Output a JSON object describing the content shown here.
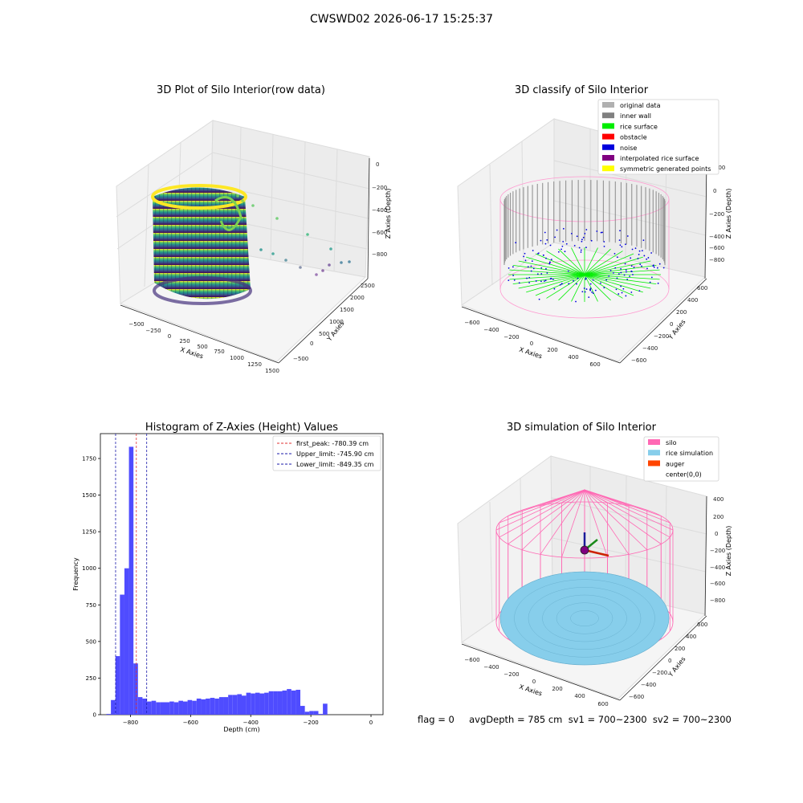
{
  "figure": {
    "title": "CWSWD02 2026-06-17 15:25:37",
    "footer": "flag = 0     avgDepth = 785 cm  sv1 = 700~2300  sv2 = 700~2300"
  },
  "colors": {
    "hist_bar": "#4f4cff",
    "first_peak_line": "#e03030",
    "limit_line": "#1a1aaa",
    "silo": "#ff69b4",
    "rice_simulation": "#87ceeb",
    "auger": "#ff4500",
    "original_data": "#b0b0b0",
    "inner_wall": "#808080",
    "rice_surface": "#00ee00",
    "obstacle": "#ff0000",
    "noise": "#0000dd",
    "interpolated_rice_surface": "#800080",
    "symmetric_generated_points": "#ffff00"
  },
  "chart_data": [
    {
      "type": "scatter",
      "title": "3D Plot of Silo Interior(row data)",
      "xlabel": "X Axies",
      "ylabel": "Y Axies",
      "zlabel": "Z Axies (Depth)",
      "x_ticks": [
        "−500",
        "−250",
        "0",
        "250",
        "500",
        "750",
        "1000",
        "1250",
        "1500"
      ],
      "y_ticks": [
        "−500",
        "0",
        "500",
        "1000",
        "1500",
        "2000",
        "2500"
      ],
      "z_ticks": [
        "0",
        "−200",
        "−400",
        "−600",
        "−800"
      ],
      "colormap": "viridis"
    },
    {
      "type": "scatter",
      "title": "3D classify of Silo Interior",
      "xlabel": "X Axies",
      "ylabel": "Y Axies",
      "zlabel": "Z Axies (Depth)",
      "x_ticks": [
        "−600",
        "−400",
        "−200",
        "0",
        "200",
        "400",
        "600"
      ],
      "y_ticks": [
        "−600",
        "−400",
        "−200",
        "0",
        "200",
        "400",
        "600"
      ],
      "z_ticks": [
        "200",
        "0",
        "−200",
        "−400",
        "−600",
        "−800"
      ],
      "legend_position": "top-right",
      "legend": [
        {
          "label": "original data",
          "color": "#b0b0b0"
        },
        {
          "label": "inner wall",
          "color": "#808080"
        },
        {
          "label": "rice surface",
          "color": "#00ee00"
        },
        {
          "label": "obstacle",
          "color": "#ff0000"
        },
        {
          "label": "noise",
          "color": "#0000dd"
        },
        {
          "label": "interpolated rice surface",
          "color": "#800080"
        },
        {
          "label": "symmetric generated points",
          "color": "#ffff00"
        }
      ]
    },
    {
      "type": "bar",
      "title": "Histogram of Z-Axies (Height) Values",
      "xlabel": "Depth (cm)",
      "ylabel": "Frequency",
      "xlim": [
        -900,
        40
      ],
      "ylim": [
        0,
        1920
      ],
      "x_ticks": [
        -800,
        -600,
        -400,
        -200,
        0
      ],
      "y_ticks": [
        0,
        250,
        500,
        750,
        1000,
        1250,
        1500,
        1750
      ],
      "bin_width": 15,
      "bins_start": -880,
      "values": [
        5,
        100,
        400,
        820,
        1000,
        1830,
        350,
        120,
        110,
        90,
        95,
        85,
        85,
        85,
        90,
        85,
        95,
        90,
        100,
        95,
        110,
        105,
        110,
        115,
        110,
        120,
        120,
        135,
        135,
        140,
        130,
        150,
        145,
        150,
        145,
        150,
        160,
        160,
        160,
        165,
        175,
        165,
        170,
        60,
        20,
        25,
        25,
        5,
        75
      ],
      "vlines": [
        {
          "label": "first_peak: -780.39 cm",
          "x": -780.39,
          "color": "#e03030"
        },
        {
          "label": "Upper_limit: -745.90 cm",
          "x": -745.9,
          "color": "#1a1aaa"
        },
        {
          "label": "Lower_limit: -849.35 cm",
          "x": -849.35,
          "color": "#1a1aaa"
        }
      ],
      "legend_position": "top-right"
    },
    {
      "type": "scatter",
      "title": "3D simulation of Silo Interior",
      "xlabel": "X Axies",
      "ylabel": "Y Axies",
      "zlabel": "Z Axies (Depth)",
      "x_ticks": [
        "−600",
        "−400",
        "−200",
        "0",
        "200",
        "400",
        "600"
      ],
      "y_ticks": [
        "−600",
        "−400",
        "−200",
        "0",
        "200",
        "400",
        "600"
      ],
      "z_ticks": [
        "400",
        "200",
        "0",
        "−200",
        "−400",
        "−600",
        "−800"
      ],
      "legend_position": "top-right",
      "legend": [
        {
          "label": "silo",
          "color": "#ff69b4"
        },
        {
          "label": "rice simulation",
          "color": "#87ceeb"
        },
        {
          "label": "auger",
          "color": "#ff4500"
        },
        {
          "label": "center(0,0)",
          "color": "#ffffff"
        }
      ]
    }
  ]
}
